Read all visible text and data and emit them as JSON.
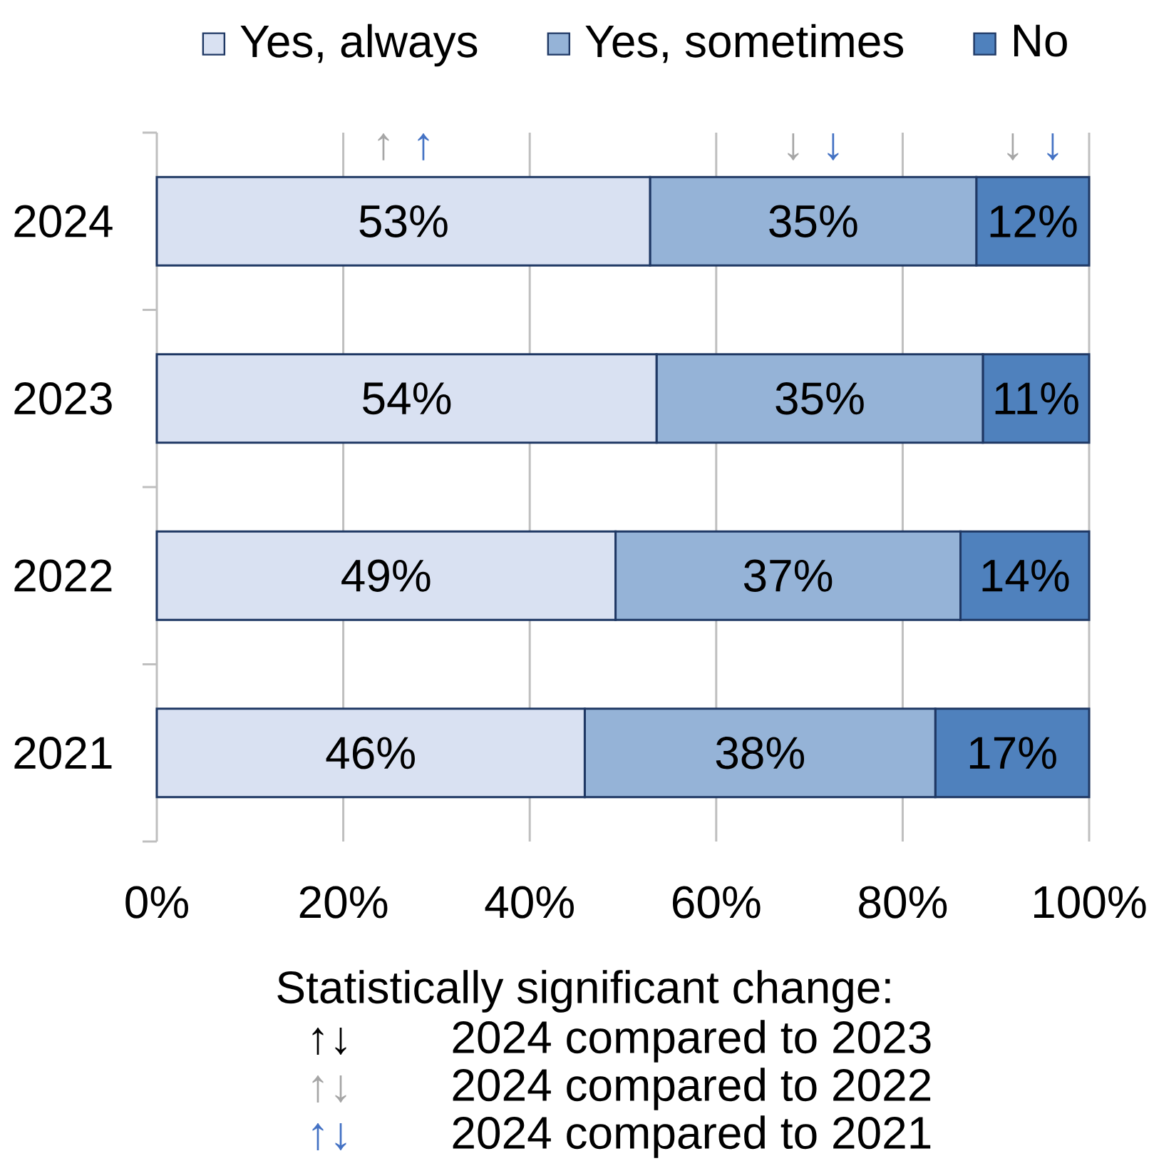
{
  "chart_data": {
    "type": "bar",
    "orientation": "horizontal",
    "stacked": true,
    "categories": [
      "2024",
      "2023",
      "2022",
      "2021"
    ],
    "series": [
      {
        "name": "Yes, always",
        "color": "#d9e1f2",
        "values": [
          52.9,
          53.6,
          49.2,
          45.9
        ],
        "value_labels": [
          "53%",
          "54%",
          "49%",
          "46%"
        ]
      },
      {
        "name": "Yes, sometimes",
        "color": "#95b3d7",
        "values": [
          35.0,
          35.0,
          37.0,
          37.6
        ],
        "value_labels": [
          "35%",
          "35%",
          "37%",
          "38%"
        ]
      },
      {
        "name": "No",
        "color": "#4f81bd",
        "values": [
          12.1,
          11.4,
          13.8,
          16.5
        ],
        "value_labels": [
          "12%",
          "11%",
          "14%",
          "17%"
        ]
      }
    ],
    "xlim": [
      0,
      100
    ],
    "xticks": [
      {
        "value": 0,
        "label": "0%"
      },
      {
        "value": 20,
        "label": "20%"
      },
      {
        "value": 40,
        "label": "40%"
      },
      {
        "value": 60,
        "label": "60%"
      },
      {
        "value": 80,
        "label": "80%"
      },
      {
        "value": 100,
        "label": "100%"
      }
    ],
    "grid": "x",
    "legend": "top",
    "annotations": [
      "↑",
      "↑",
      "↓",
      "↓",
      "↓",
      "↓",
      "Statistically significant change:",
      "↑↓",
      "2024 compared to 2023",
      "↑↓",
      "2024 compared to 2022",
      "↑↓",
      "2024 compared to 2021"
    ]
  }
}
